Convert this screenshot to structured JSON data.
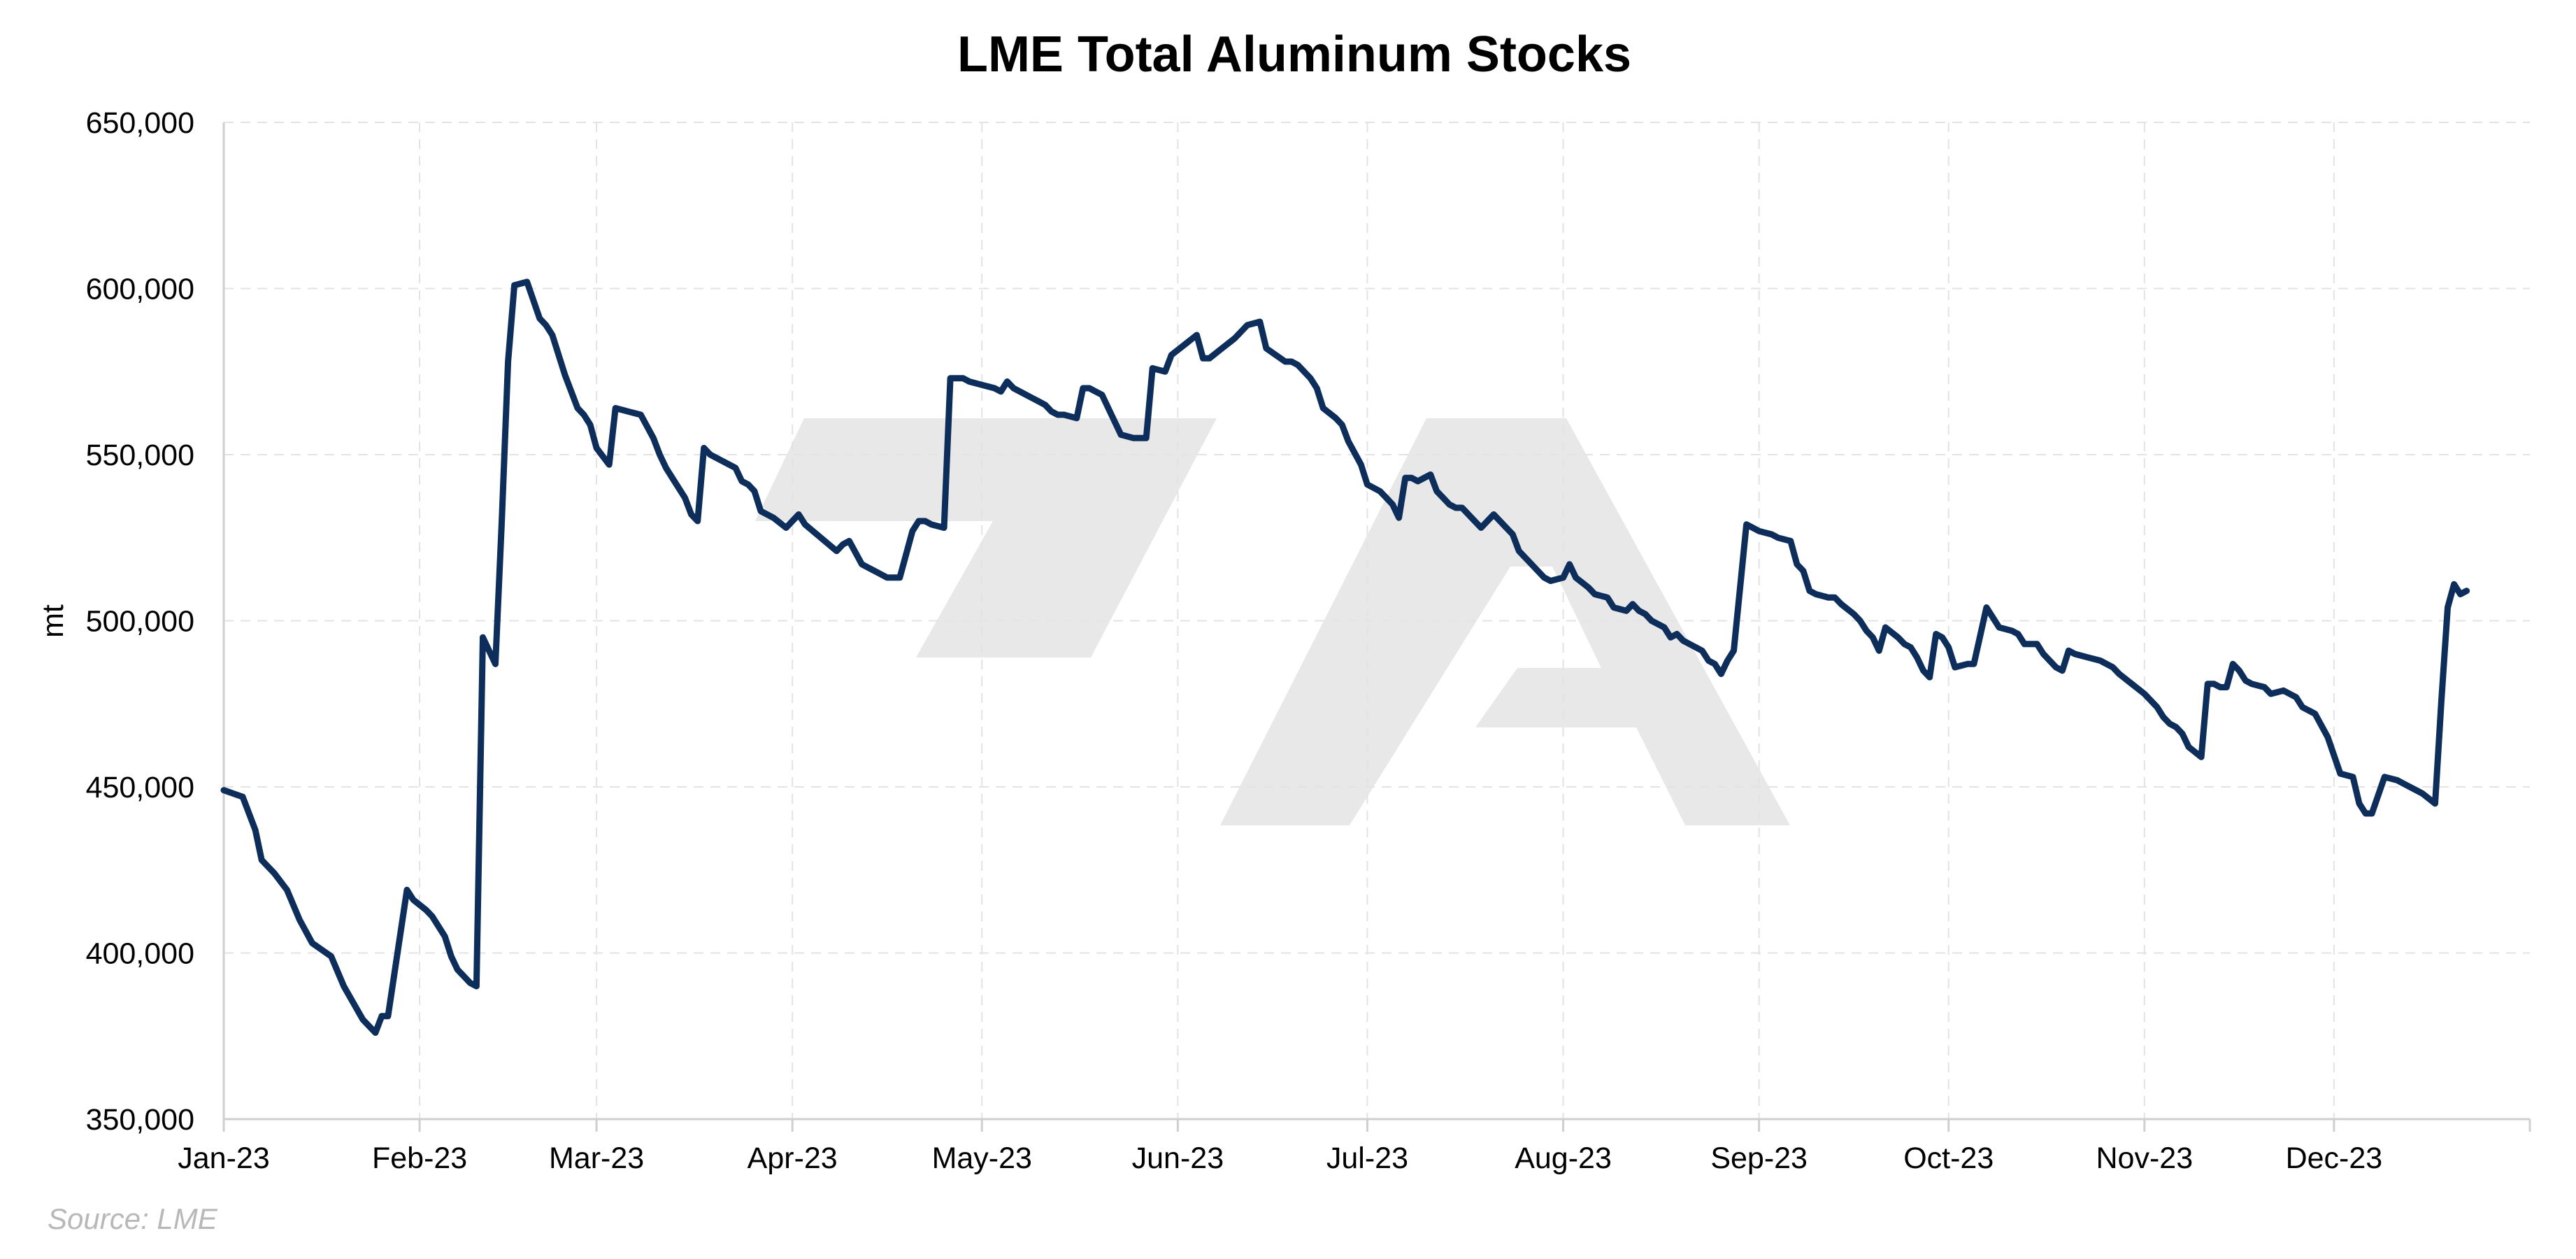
{
  "source_note": "Source: LME",
  "colors": {
    "line": "#0d2d5a",
    "grid": "#e3e3e3",
    "watermark": "#e8e8e8",
    "source": "#b8b8b8"
  },
  "chart_data": {
    "type": "line",
    "title": "LME Total Aluminum Stocks",
    "xlabel": "",
    "ylabel": "mt",
    "ylim": [
      350000,
      650000
    ],
    "yticks": [
      350000,
      400000,
      450000,
      500000,
      550000,
      600000,
      650000
    ],
    "ytick_labels": [
      "350,000",
      "400,000",
      "450,000",
      "500,000",
      "550,000",
      "600,000",
      "650,000"
    ],
    "xlim": [
      "2023-01-01",
      "2024-01-01"
    ],
    "xticks": [
      "2023-01-01",
      "2023-02-01",
      "2023-03-01",
      "2023-04-01",
      "2023-05-01",
      "2023-06-01",
      "2023-07-01",
      "2023-08-01",
      "2023-09-01",
      "2023-10-01",
      "2023-11-01",
      "2023-12-01"
    ],
    "xtick_labels": [
      "Jan-23",
      "Feb-23",
      "Mar-23",
      "Apr-23",
      "May-23",
      "Jun-23",
      "Jul-23",
      "Aug-23",
      "Sep-23",
      "Oct-23",
      "Nov-23",
      "Dec-23"
    ],
    "grid": true,
    "series": [
      {
        "x": [
          "2023-01-01",
          "2023-01-04",
          "2023-01-06",
          "2023-01-07",
          "2023-01-09",
          "2023-01-11",
          "2023-01-13",
          "2023-01-15",
          "2023-01-18",
          "2023-01-20",
          "2023-01-23",
          "2023-01-24",
          "2023-01-25",
          "2023-01-26",
          "2023-01-27",
          "2023-01-30",
          "2023-01-31",
          "2023-02-02",
          "2023-02-03",
          "2023-02-05",
          "2023-02-06",
          "2023-02-07",
          "2023-02-08",
          "2023-02-09",
          "2023-02-10",
          "2023-02-11",
          "2023-02-13",
          "2023-02-14",
          "2023-02-15",
          "2023-02-16",
          "2023-02-18",
          "2023-02-20",
          "2023-02-21",
          "2023-02-22",
          "2023-02-24",
          "2023-02-26",
          "2023-02-27",
          "2023-02-28",
          "2023-03-01",
          "2023-03-03",
          "2023-03-04",
          "2023-03-06",
          "2023-03-08",
          "2023-03-10",
          "2023-03-11",
          "2023-03-12",
          "2023-03-13",
          "2023-03-15",
          "2023-03-16",
          "2023-03-17",
          "2023-03-18",
          "2023-03-19",
          "2023-03-21",
          "2023-03-23",
          "2023-03-24",
          "2023-03-25",
          "2023-03-26",
          "2023-03-27",
          "2023-03-29",
          "2023-03-31",
          "2023-04-02",
          "2023-04-03",
          "2023-04-08",
          "2023-04-09",
          "2023-04-10",
          "2023-04-12",
          "2023-04-13",
          "2023-04-14",
          "2023-04-16",
          "2023-04-18",
          "2023-04-20",
          "2023-04-21",
          "2023-04-22",
          "2023-04-23",
          "2023-04-25",
          "2023-04-26",
          "2023-04-28",
          "2023-04-29",
          "2023-05-01",
          "2023-05-03",
          "2023-05-04",
          "2023-05-05",
          "2023-05-06",
          "2023-05-08",
          "2023-05-09",
          "2023-05-10",
          "2023-05-11",
          "2023-05-12",
          "2023-05-13",
          "2023-05-14",
          "2023-05-16",
          "2023-05-17",
          "2023-05-18",
          "2023-05-19",
          "2023-05-20",
          "2023-05-22",
          "2023-05-23",
          "2023-05-25",
          "2023-05-26",
          "2023-05-27",
          "2023-05-28",
          "2023-05-30",
          "2023-05-31",
          "2023-06-02",
          "2023-06-04",
          "2023-06-05",
          "2023-06-06",
          "2023-06-08",
          "2023-06-10",
          "2023-06-12",
          "2023-06-14",
          "2023-06-15",
          "2023-06-18",
          "2023-06-19",
          "2023-06-20",
          "2023-06-22",
          "2023-06-23",
          "2023-06-24",
          "2023-06-26",
          "2023-06-27",
          "2023-06-28",
          "2023-06-30",
          "2023-07-01",
          "2023-07-03",
          "2023-07-04",
          "2023-07-05",
          "2023-07-06",
          "2023-07-07",
          "2023-07-08",
          "2023-07-09",
          "2023-07-11",
          "2023-07-12",
          "2023-07-13",
          "2023-07-14",
          "2023-07-15",
          "2023-07-16",
          "2023-07-17",
          "2023-07-19",
          "2023-07-21",
          "2023-07-23",
          "2023-07-24",
          "2023-07-25",
          "2023-07-27",
          "2023-07-29",
          "2023-07-30",
          "2023-08-01",
          "2023-08-02",
          "2023-08-03",
          "2023-08-05",
          "2023-08-06",
          "2023-08-08",
          "2023-08-09",
          "2023-08-11",
          "2023-08-12",
          "2023-08-13",
          "2023-08-14",
          "2023-08-15",
          "2023-08-17",
          "2023-08-18",
          "2023-08-19",
          "2023-08-20",
          "2023-08-21",
          "2023-08-23",
          "2023-08-24",
          "2023-08-25",
          "2023-08-26",
          "2023-08-27",
          "2023-08-28",
          "2023-08-30",
          "2023-08-31",
          "2023-09-01",
          "2023-09-03",
          "2023-09-04",
          "2023-09-06",
          "2023-09-07",
          "2023-09-08",
          "2023-09-09",
          "2023-09-10",
          "2023-09-12",
          "2023-09-13",
          "2023-09-14",
          "2023-09-16",
          "2023-09-17",
          "2023-09-18",
          "2023-09-19",
          "2023-09-20",
          "2023-09-21",
          "2023-09-23",
          "2023-09-24",
          "2023-09-25",
          "2023-09-26",
          "2023-09-27",
          "2023-09-28",
          "2023-09-29",
          "2023-09-30",
          "2023-10-01",
          "2023-10-02",
          "2023-10-04",
          "2023-10-05",
          "2023-10-07",
          "2023-10-08",
          "2023-10-09",
          "2023-10-11",
          "2023-10-12",
          "2023-10-13",
          "2023-10-15",
          "2023-10-16",
          "2023-10-17",
          "2023-10-18",
          "2023-10-19",
          "2023-10-20",
          "2023-10-21",
          "2023-10-23",
          "2023-10-25",
          "2023-10-27",
          "2023-10-28",
          "2023-10-30",
          "2023-11-01",
          "2023-11-02",
          "2023-11-03",
          "2023-11-04",
          "2023-11-05",
          "2023-11-06",
          "2023-11-07",
          "2023-11-08",
          "2023-11-10",
          "2023-11-11",
          "2023-11-12",
          "2023-11-13",
          "2023-11-14",
          "2023-11-15",
          "2023-11-16",
          "2023-11-17",
          "2023-11-18",
          "2023-11-20",
          "2023-11-21",
          "2023-11-23",
          "2023-11-25",
          "2023-11-26",
          "2023-11-28",
          "2023-11-30",
          "2023-12-02",
          "2023-12-04",
          "2023-12-05",
          "2023-12-06",
          "2023-12-07",
          "2023-12-09",
          "2023-12-11",
          "2023-12-12",
          "2023-12-13",
          "2023-12-15",
          "2023-12-17",
          "2023-12-18",
          "2023-12-19",
          "2023-12-20",
          "2023-12-21",
          "2023-12-22"
        ],
        "y": [
          449000,
          447000,
          437000,
          428000,
          424000,
          419000,
          410000,
          403000,
          399000,
          390000,
          380000,
          378000,
          376000,
          381000,
          381000,
          419000,
          416000,
          413000,
          411000,
          405000,
          399000,
          395000,
          393000,
          391000,
          390000,
          495000,
          487000,
          530000,
          578000,
          601000,
          602000,
          591000,
          589000,
          586000,
          574000,
          564000,
          562000,
          559000,
          552000,
          547000,
          564000,
          563000,
          562000,
          555000,
          550000,
          546000,
          543000,
          537000,
          532000,
          530000,
          552000,
          550000,
          548000,
          546000,
          542000,
          541000,
          539000,
          533000,
          531000,
          528000,
          532000,
          529000,
          521000,
          523000,
          524000,
          517000,
          516000,
          515000,
          513000,
          513000,
          527000,
          530000,
          530000,
          529000,
          528000,
          573000,
          573000,
          572000,
          571000,
          570000,
          569000,
          572000,
          570000,
          568000,
          567000,
          566000,
          565000,
          563000,
          562000,
          562000,
          561000,
          570000,
          570000,
          569000,
          568000,
          560000,
          556000,
          555000,
          555000,
          555000,
          576000,
          575000,
          580000,
          583000,
          586000,
          579000,
          579000,
          582000,
          585000,
          589000,
          590000,
          582000,
          578000,
          578000,
          577000,
          573000,
          570000,
          564000,
          561000,
          559000,
          554000,
          547000,
          541000,
          539000,
          537000,
          535000,
          531000,
          543000,
          543000,
          542000,
          544000,
          539000,
          537000,
          535000,
          534000,
          534000,
          532000,
          528000,
          532000,
          528000,
          526000,
          521000,
          517000,
          513000,
          512000,
          513000,
          517000,
          513000,
          510000,
          508000,
          507000,
          504000,
          503000,
          505000,
          503000,
          502000,
          500000,
          498000,
          495000,
          496000,
          494000,
          493000,
          491000,
          488000,
          487000,
          484000,
          488000,
          491000,
          529000,
          528000,
          527000,
          526000,
          525000,
          524000,
          517000,
          515000,
          509000,
          508000,
          507000,
          507000,
          505000,
          502000,
          500000,
          497000,
          495000,
          491000,
          498000,
          495000,
          493000,
          492000,
          489000,
          485000,
          483000,
          496000,
          495000,
          492000,
          486000,
          487000,
          487000,
          504000,
          501000,
          498000,
          497000,
          496000,
          493000,
          493000,
          490000,
          488000,
          486000,
          485000,
          491000,
          490000,
          489000,
          488000,
          486000,
          484000,
          481000,
          478000,
          476000,
          474000,
          471000,
          469000,
          468000,
          466000,
          462000,
          459000,
          481000,
          481000,
          480000,
          480000,
          487000,
          485000,
          482000,
          481000,
          480000,
          478000,
          479000,
          477000,
          474000,
          472000,
          465000,
          454000,
          453000,
          445000,
          442000,
          442000,
          453000,
          452000,
          451000,
          450000,
          448000,
          445000,
          476000,
          504000,
          511000,
          508000,
          509000
        ]
      }
    ]
  }
}
